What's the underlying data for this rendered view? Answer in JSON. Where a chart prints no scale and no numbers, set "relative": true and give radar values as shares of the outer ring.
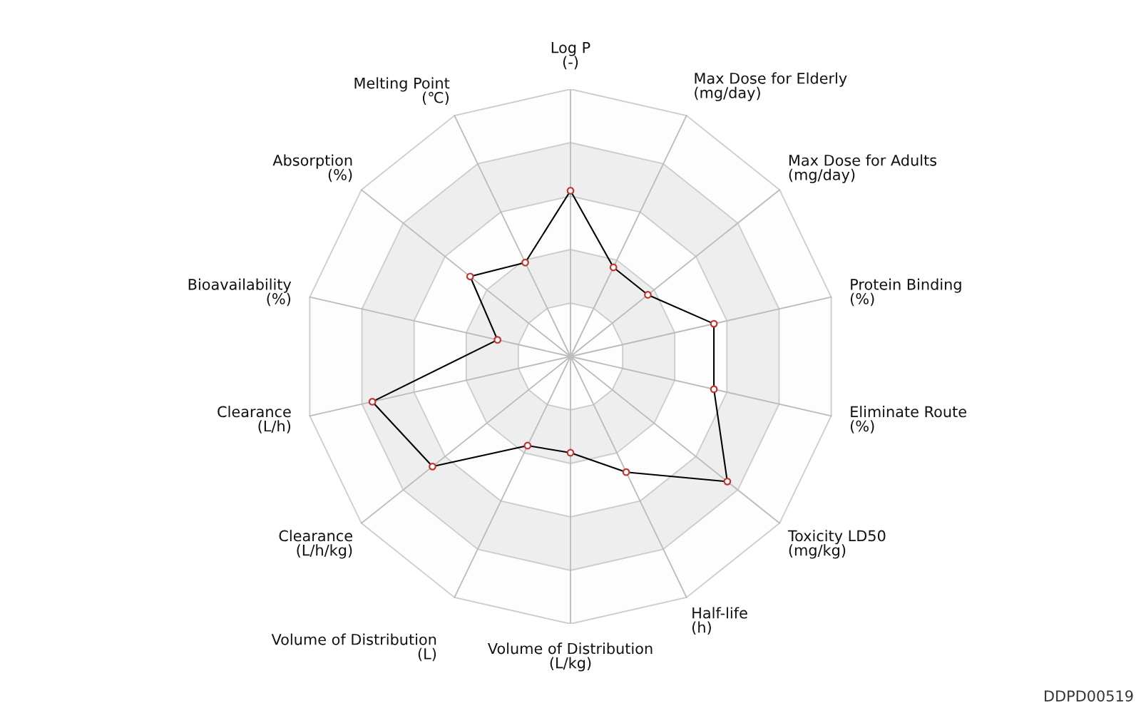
{
  "chart_data": {
    "type": "radar",
    "relative": true,
    "categories": [
      "Log P\n(-)",
      "Max Dose for Elderly\n(mg/day)",
      "Max Dose for Adults\n(mg/day)",
      "Protein Binding\n(%)",
      "Eliminate Route\n(%)",
      "Toxicity LD50\n(mg/kg)",
      "Half-life\n(h)",
      "Volume of Distribution\n(L/kg)",
      "Volume of Distribution\n(L)",
      "Clearance\n(L/h/kg)",
      "Clearance\n(L/h)",
      "Bioavailability\n(%)",
      "Absorption\n(%)",
      "Melting Point\n(℃)"
    ],
    "series": [
      {
        "color": "#000000",
        "colors": [
          "#c23531",
          "#c23531",
          "#c23531",
          "#c23531",
          "#c23531",
          "#c23531",
          "#c23531",
          "#c23531",
          "#c23531",
          "#c23531",
          "#c23531",
          "#c23531",
          "#c23531",
          "#c23531"
        ],
        "values": [
          0.62,
          0.37,
          0.37,
          0.55,
          0.55,
          0.75,
          0.48,
          0.36,
          0.37,
          0.66,
          0.76,
          0.28,
          0.48,
          0.39
        ]
      }
    ],
    "grid": true,
    "marker": "circle",
    "line_style": "solid",
    "annotations": [
      "DDPD00519"
    ]
  }
}
